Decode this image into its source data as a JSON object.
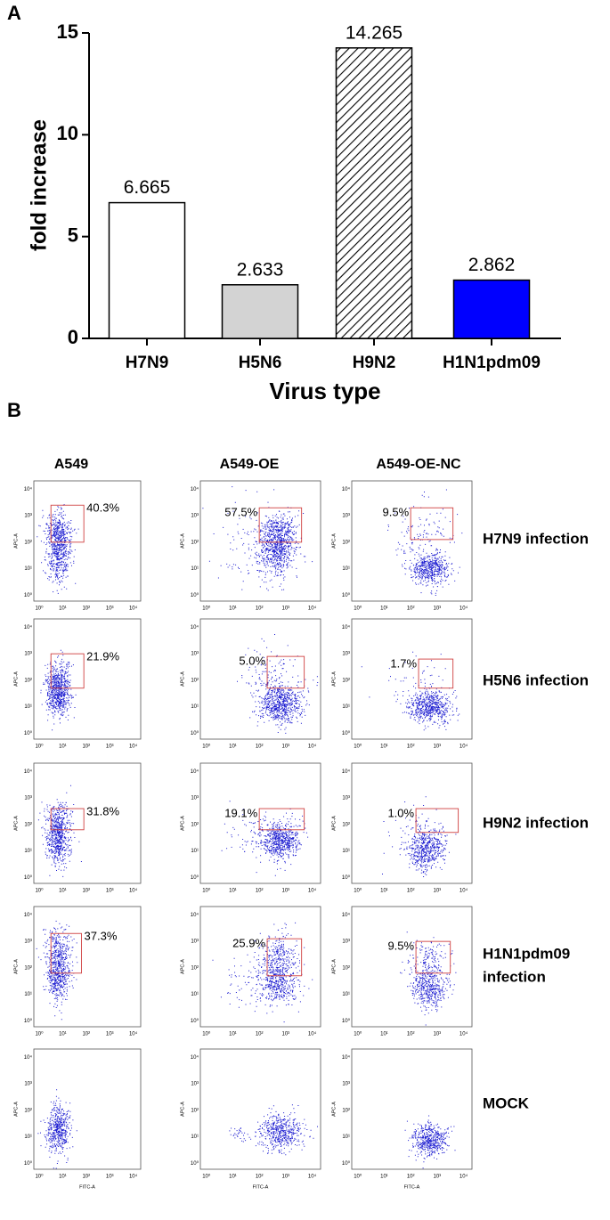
{
  "chart_data": {
    "type": "bar",
    "panel_label": "A",
    "categories": [
      "H7N9",
      "H5N6",
      "H9N2",
      "H1N1pdm09"
    ],
    "values": [
      6.665,
      2.633,
      14.265,
      2.862
    ],
    "colors": [
      "#ffffff",
      "#d3d3d3",
      "#ffffff",
      "#0000ff"
    ],
    "patterns": [
      "solid",
      "solid",
      "diagonal",
      "solid"
    ],
    "xlabel": "Virus type",
    "ylabel": "fold increase",
    "ylim": [
      0,
      15
    ],
    "yticks": [
      0,
      5,
      10,
      15
    ]
  },
  "flow": {
    "panel_label": "B",
    "columns": [
      "A549",
      "A549-OE",
      "A549-OE-NC"
    ],
    "tick_labels": [
      "10⁰",
      "10¹",
      "10²",
      "10³",
      "10⁴"
    ],
    "y_axis": "APC-A",
    "x_axis": "FITC-A",
    "rows": [
      {
        "label": [
          "H7N9 infection"
        ],
        "percents": [
          "40.3%",
          "57.5%",
          "9.5%"
        ]
      },
      {
        "label": [
          "H5N6 infection"
        ],
        "percents": [
          "21.9%",
          "5.0%",
          "1.7%"
        ]
      },
      {
        "label": [
          "H9N2 infection"
        ],
        "percents": [
          "31.8%",
          "19.1%",
          "1.0%"
        ]
      },
      {
        "label": [
          "H1N1pdm09",
          " infection"
        ],
        "percents": [
          "37.3%",
          "25.9%",
          "9.5%"
        ]
      },
      {
        "label": [
          "MOCK"
        ]
      }
    ]
  }
}
